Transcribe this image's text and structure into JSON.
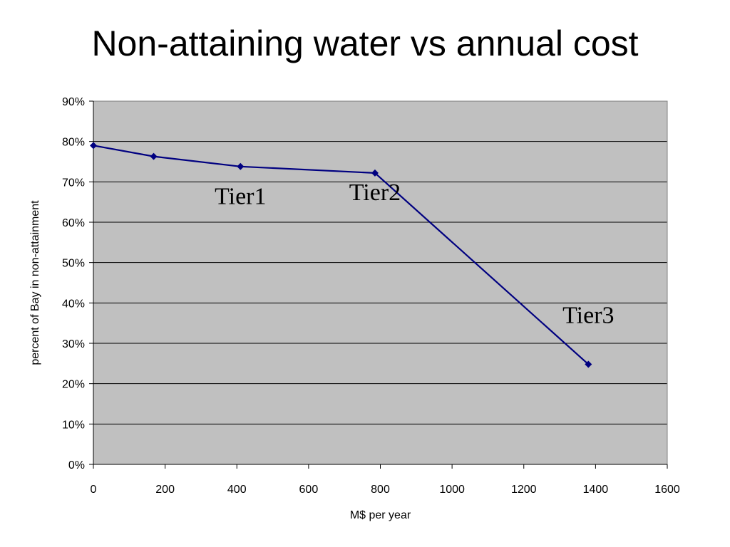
{
  "title": "Non-attaining water vs annual cost",
  "chart_data": {
    "type": "line",
    "title": "Non-attaining water vs annual cost",
    "xlabel": "M$ per year",
    "ylabel": "percent of Bay in non-attainment",
    "xlim": [
      0,
      1600
    ],
    "ylim": [
      0,
      90
    ],
    "x_ticks": [
      0,
      200,
      400,
      600,
      800,
      1000,
      1200,
      1400,
      1600
    ],
    "y_ticks": [
      0,
      10,
      20,
      30,
      40,
      50,
      60,
      70,
      80,
      90
    ],
    "y_tick_suffix": "%",
    "grid": "horizontal",
    "plot_background": "#c0c0c0",
    "series": [
      {
        "color": "#000080",
        "marker": "diamond",
        "x": [
          0,
          168,
          410,
          785,
          1380
        ],
        "y": [
          79,
          76.3,
          73.8,
          72.2,
          24.8
        ]
      }
    ],
    "annotations": [
      {
        "text": "Tier1",
        "x": 410,
        "y": 64.5
      },
      {
        "text": "Tier2",
        "x": 785,
        "y": 65.5
      },
      {
        "text": "Tier3",
        "x": 1380,
        "y": 35
      }
    ]
  }
}
